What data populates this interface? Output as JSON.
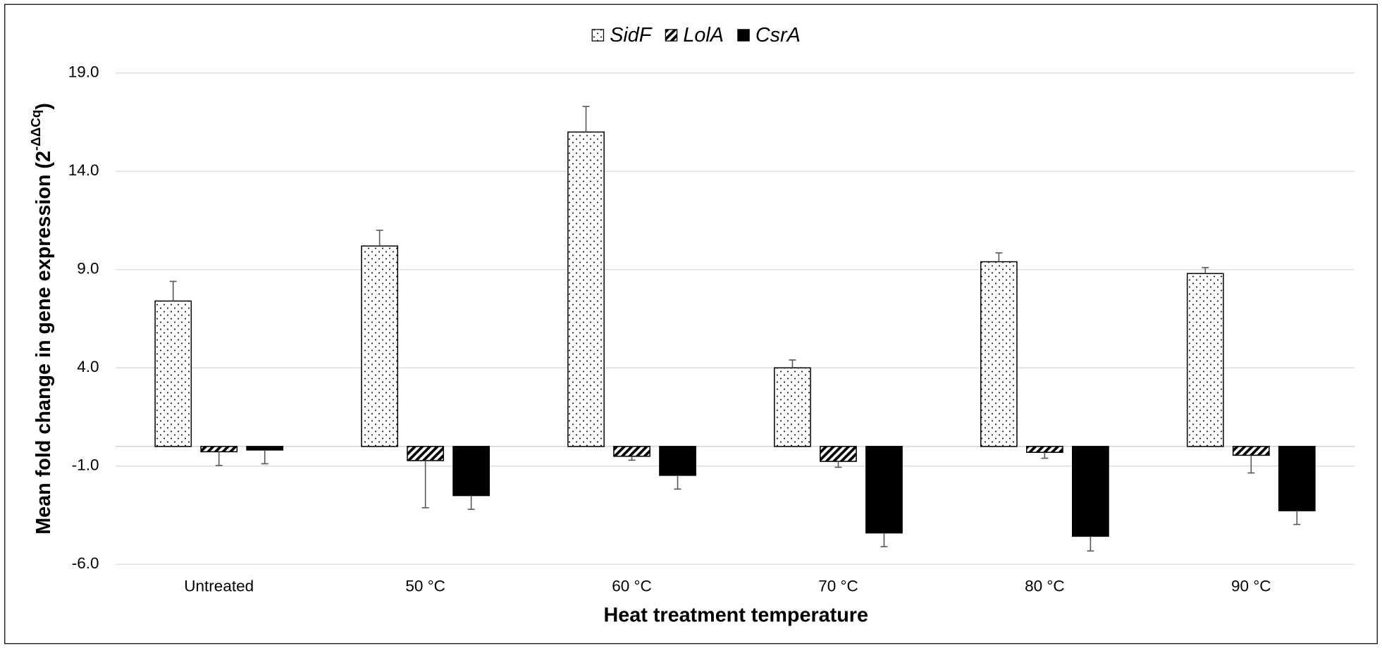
{
  "chart_data": {
    "type": "bar",
    "y_label": "Mean fold change in gene expression (2",
    "y_label_superscript": "-ΔΔCq",
    "y_label_suffix": ")",
    "x_label": "Heat treatment temperature",
    "categories": [
      "Untreated",
      "50 °C",
      "60 °C",
      "70 °C",
      "80 °C",
      "90 °C"
    ],
    "series": [
      {
        "name": "SidF",
        "color": "#ffffff",
        "pattern": "dots",
        "values": [
          7.4,
          10.2,
          16.0,
          4.0,
          9.4,
          8.8
        ],
        "errors": [
          1.0,
          0.8,
          1.3,
          0.4,
          0.45,
          0.3
        ]
      },
      {
        "name": "LolA",
        "color": "#ffffff",
        "pattern": "hatch",
        "values": [
          -0.27,
          -0.72,
          -0.5,
          -0.76,
          -0.3,
          -0.45
        ],
        "errors": [
          0.7,
          2.4,
          0.2,
          0.3,
          0.3,
          0.9
        ]
      },
      {
        "name": "CsrA",
        "color": "#000000",
        "pattern": "solid",
        "values": [
          -0.18,
          -2.5,
          -1.47,
          -4.4,
          -4.57,
          -3.27
        ],
        "errors": [
          0.7,
          0.7,
          0.7,
          0.7,
          0.75,
          0.7
        ]
      }
    ],
    "ylim": [
      -6,
      19
    ],
    "yticks": [
      {
        "value": -6,
        "label": "-6.0"
      },
      {
        "value": -1,
        "label": "-1.0"
      },
      {
        "value": 4,
        "label": "4.0"
      },
      {
        "value": 9,
        "label": "9.0"
      },
      {
        "value": 14,
        "label": "14.0"
      },
      {
        "value": 19,
        "label": "19.0"
      }
    ],
    "grid": true,
    "legend": "top"
  }
}
